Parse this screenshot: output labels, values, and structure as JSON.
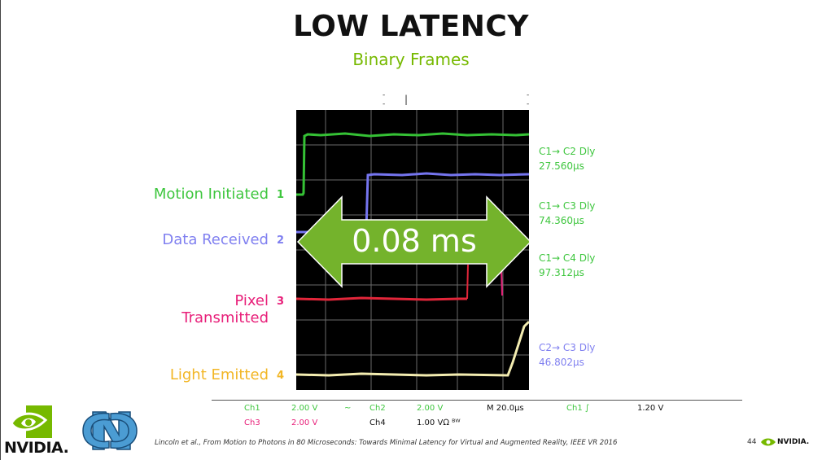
{
  "slide": {
    "title": "LOW LATENCY",
    "subtitle": "Binary Frames",
    "page_number": "44",
    "citation": "Lincoln et al., From Motion to Photons in 80 Microseconds: Towards Minimal Latency for Virtual and Augmented Reality, IEEE VR 2016"
  },
  "channels": [
    {
      "label": "Motion Initiated",
      "num": "1",
      "color": "#3ec63e"
    },
    {
      "label": "Data Received",
      "num": "2",
      "color": "#8080f0"
    },
    {
      "label": "Pixel Transmitted",
      "num": "3",
      "color": "#e8207a"
    },
    {
      "label": "Light Emitted",
      "num": "4",
      "color": "#f2b625"
    }
  ],
  "arrow_label": "0.08 ms",
  "delays": [
    {
      "line1": "C1→ C2 Dly",
      "line2": "27.560µs",
      "color": "#3ec63e"
    },
    {
      "line1": "C1→ C3 Dly",
      "line2": "74.360µs",
      "color": "#3ec63e"
    },
    {
      "line1": "C1→ C4 Dly",
      "line2": "97.312µs",
      "color": "#3ec63e"
    },
    {
      "line1": "C2→ C3 Dly",
      "line2": "46.802µs",
      "color": "#8080f0"
    }
  ],
  "scope_footer": {
    "ch1": "Ch1",
    "ch1_val": "2.00 V",
    "ch1_sym": "~",
    "ch2": "Ch2",
    "ch2_val": "2.00 V",
    "timebase": "M 20.0µs",
    "trig": "Ch1 ∫",
    "trig_val": "1.20 V",
    "ch3": "Ch3",
    "ch3_val": "2.00 V",
    "ch4": "Ch4",
    "ch4_val": "1.00 VΩ ᴮᵂ"
  },
  "logos": {
    "nvidia_text": "NVIDIA.",
    "nvidia_small": "NVIDIA."
  },
  "colors": {
    "accent_green": "#76b900",
    "unc_blue": "#4b9cd3"
  }
}
